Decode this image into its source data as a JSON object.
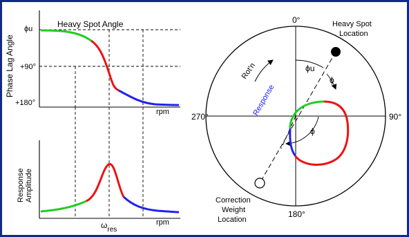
{
  "colors": {
    "background": "#13298a",
    "panel": "#ffffff",
    "low_speed": "#22cc22",
    "resonance": "#ee1111",
    "high_speed": "#2222ee"
  },
  "phase_plot": {
    "title": "Heavy Spot Angle",
    "ylabel": "Phase Lag Angle",
    "y_ticks": [
      "ϕu",
      "+90°",
      "+180°"
    ],
    "xlabel": "rpm"
  },
  "amplitude_plot": {
    "ylabel_line1": "Response",
    "ylabel_line2": "Amplitude",
    "xlabel": "rpm",
    "resonance_symbol": "ω",
    "resonance_sub": "res"
  },
  "polar_plot": {
    "angle_top": "0°",
    "angle_right": "90°",
    "angle_bottom": "180°",
    "angle_left": "270°",
    "heavy_spot_line1": "Heavy Spot",
    "heavy_spot_line2": "Location",
    "correction_line1": "Correction",
    "correction_line2": "Weight",
    "correction_line3": "Location",
    "rotation": "Rot'n",
    "response": "Response",
    "phi_u": "ϕu",
    "phi": "ϕ"
  }
}
